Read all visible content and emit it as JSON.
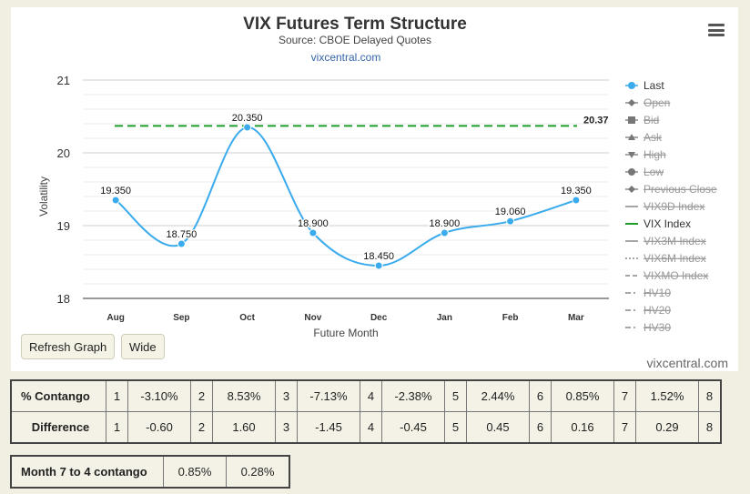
{
  "chart_data": {
    "type": "line",
    "title": "VIX Futures Term Structure",
    "subtitle": "Source: CBOE Delayed Quotes",
    "source_link": "vixcentral.com",
    "xlabel": "Future Month",
    "ylabel": "Volatility",
    "categories": [
      "Aug",
      "Sep",
      "Oct",
      "Nov",
      "Dec",
      "Jan",
      "Feb",
      "Mar"
    ],
    "ylim": [
      18,
      21
    ],
    "yticks": [
      18,
      19,
      20,
      21
    ],
    "grid": true,
    "legend_position": "right",
    "series": [
      {
        "name": "Last",
        "color": "#3aabec",
        "values": [
          19.35,
          18.75,
          20.35,
          18.9,
          18.45,
          18.9,
          19.06,
          19.35
        ],
        "labels": [
          "19.350",
          "18.750",
          "20.350",
          "18.900",
          "18.450",
          "18.900",
          "19.060",
          "19.350"
        ]
      },
      {
        "name": "VIX Index",
        "color": "#1f9d2a",
        "value": 20.37,
        "label": "20.37",
        "style": "dashed"
      }
    ],
    "legend": [
      {
        "name": "Last",
        "active": true,
        "marker": "circle"
      },
      {
        "name": "Open",
        "active": false,
        "marker": "diamond"
      },
      {
        "name": "Bid",
        "active": false,
        "marker": "square"
      },
      {
        "name": "Ask",
        "active": false,
        "marker": "triangle"
      },
      {
        "name": "High",
        "active": false,
        "marker": "triangle-down"
      },
      {
        "name": "Low",
        "active": false,
        "marker": "circle"
      },
      {
        "name": "Previous Close",
        "active": false,
        "marker": "diamond"
      },
      {
        "name": "VIX9D Index",
        "active": false,
        "marker": "line"
      },
      {
        "name": "VIX Index",
        "active": true,
        "marker": "line",
        "color": "#1f9d2a"
      },
      {
        "name": "VIX3M Index",
        "active": false,
        "marker": "line"
      },
      {
        "name": "VIX6M Index",
        "active": false,
        "marker": "dotted"
      },
      {
        "name": "VIXMO Index",
        "active": false,
        "marker": "dashed"
      },
      {
        "name": "HV10",
        "active": false,
        "marker": "dashdot"
      },
      {
        "name": "HV20",
        "active": false,
        "marker": "dashdot"
      },
      {
        "name": "HV30",
        "active": false,
        "marker": "dashdot"
      }
    ]
  },
  "buttons": {
    "refresh": "Refresh Graph",
    "wide": "Wide"
  },
  "credit": "vixcentral.com",
  "contango_table": {
    "rows": [
      {
        "label": "% Contango",
        "cells": [
          "1",
          "-3.10%",
          "2",
          "8.53%",
          "3",
          "-7.13%",
          "4",
          "-2.38%",
          "5",
          "2.44%",
          "6",
          "0.85%",
          "7",
          "1.52%",
          "8"
        ]
      },
      {
        "label": "Difference",
        "cells": [
          "1",
          "-0.60",
          "2",
          "1.60",
          "3",
          "-1.45",
          "4",
          "-0.45",
          "5",
          "0.45",
          "6",
          "0.16",
          "7",
          "0.29",
          "8"
        ]
      }
    ]
  },
  "month_contango": {
    "label": "Month 7 to 4 contango",
    "values": [
      "0.85%",
      "0.28%"
    ]
  }
}
